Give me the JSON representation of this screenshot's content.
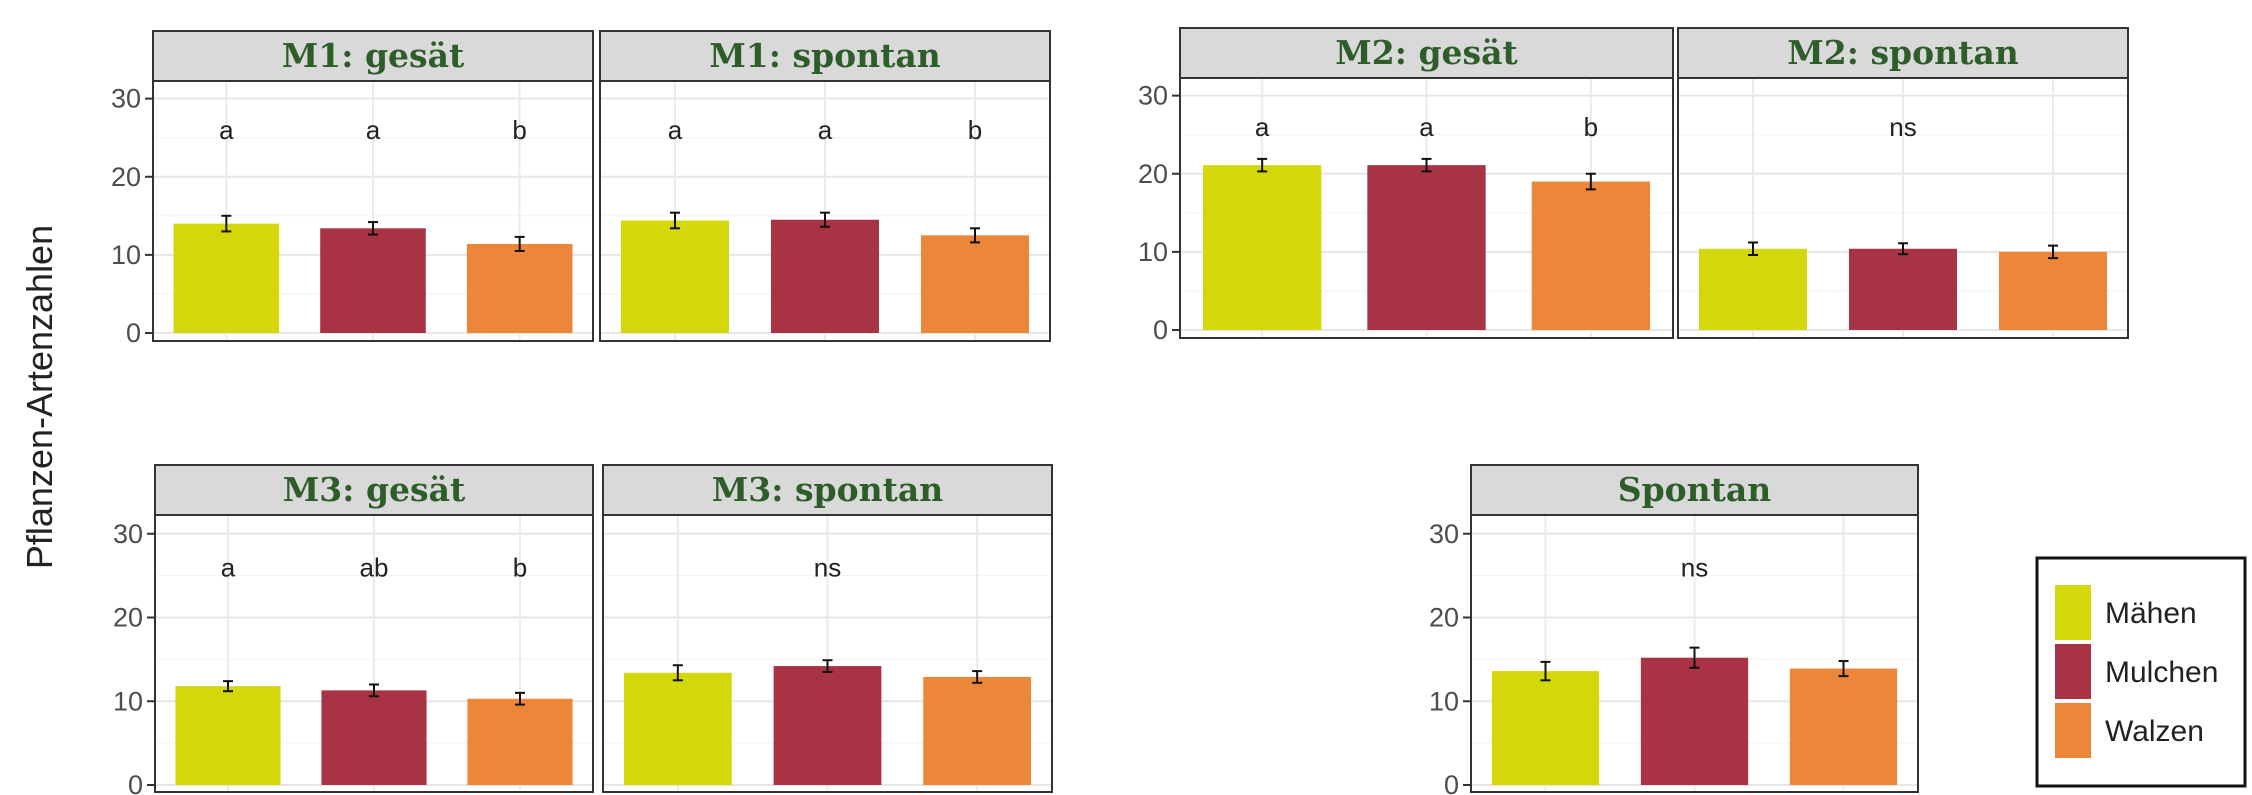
{
  "chart_data": {
    "type": "bar",
    "ylabel": "Pflanzen-Artenzahlen",
    "ylim": [
      0,
      32
    ],
    "yticks": [
      0,
      10,
      20,
      30
    ],
    "grid": true,
    "legend_position": "right",
    "categories": [
      "Mähen",
      "Mulchen",
      "Walzen"
    ],
    "colors": {
      "Mähen": "#d4d70a",
      "Mulchen": "#a83345",
      "Walzen": "#ec873a"
    },
    "panels": [
      {
        "title": "M1: gesät",
        "values": [
          14.0,
          13.4,
          11.4
        ],
        "errors": [
          1.0,
          0.8,
          0.9
        ],
        "labels": [
          "a",
          "a",
          "b"
        ]
      },
      {
        "title": "M1: spontan",
        "values": [
          14.4,
          14.5,
          12.5
        ],
        "errors": [
          1.0,
          0.9,
          0.9
        ],
        "labels": [
          "a",
          "a",
          "b"
        ]
      },
      {
        "title": "M2: gesät",
        "values": [
          21.1,
          21.1,
          19.0
        ],
        "errors": [
          0.8,
          0.8,
          1.0
        ],
        "labels": [
          "a",
          "a",
          "b"
        ]
      },
      {
        "title": "M2: spontan",
        "values": [
          10.4,
          10.4,
          10.0
        ],
        "errors": [
          0.8,
          0.7,
          0.8
        ],
        "labels": [
          "ns"
        ]
      },
      {
        "title": "M3: gesät",
        "values": [
          11.8,
          11.3,
          10.3
        ],
        "errors": [
          0.6,
          0.7,
          0.7
        ],
        "labels": [
          "a",
          "ab",
          "b"
        ]
      },
      {
        "title": "M3: spontan",
        "values": [
          13.4,
          14.2,
          12.9
        ],
        "errors": [
          0.9,
          0.7,
          0.7
        ],
        "labels": [
          "ns"
        ]
      },
      {
        "title": "Spontan",
        "values": [
          13.6,
          15.2,
          13.9
        ],
        "errors": [
          1.1,
          1.2,
          0.9
        ],
        "labels": [
          "ns"
        ]
      }
    ]
  }
}
